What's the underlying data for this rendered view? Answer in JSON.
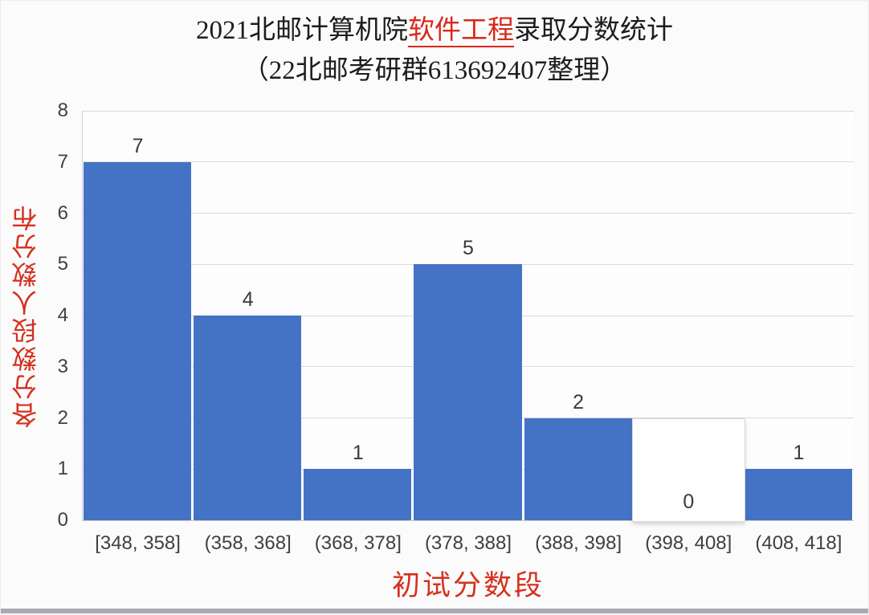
{
  "page": {
    "background": "#fbfbfc",
    "bottom_strip_color": "#a8aab1"
  },
  "title": {
    "prefix": "2021北邮计算机院",
    "highlight": "软件工程",
    "suffix": "录取分数统计",
    "subtitle": "（22北邮考研群613692407整理）",
    "text_color": "#1c1c1c",
    "highlight_color": "#d8291a"
  },
  "chart_data": {
    "type": "bar",
    "title": "2021北邮计算机院软件工程录取分数统计（22北邮考研群613692407整理）",
    "categories": [
      "[348, 358]",
      "(358, 368]",
      "(368, 378]",
      "(378, 388]",
      "(388, 398]",
      "(398, 408]",
      "(408, 418]"
    ],
    "values": [
      7,
      4,
      1,
      5,
      2,
      0,
      1
    ],
    "xlabel": "初试分数段",
    "ylabel": "各分数段人数分布",
    "ylim": [
      0,
      8
    ],
    "yticks": [
      0,
      1,
      2,
      3,
      4,
      5,
      6,
      7,
      8
    ],
    "grid": true,
    "legend": "none",
    "bar_color": "#4472c4",
    "gridline_color": "#dadadd",
    "axis_title_color": "#d5301e",
    "tick_label_color": "#404040",
    "value_label_color": "#3a3a3a",
    "zero_value_style": "white box with light border and shadow, label inside"
  }
}
